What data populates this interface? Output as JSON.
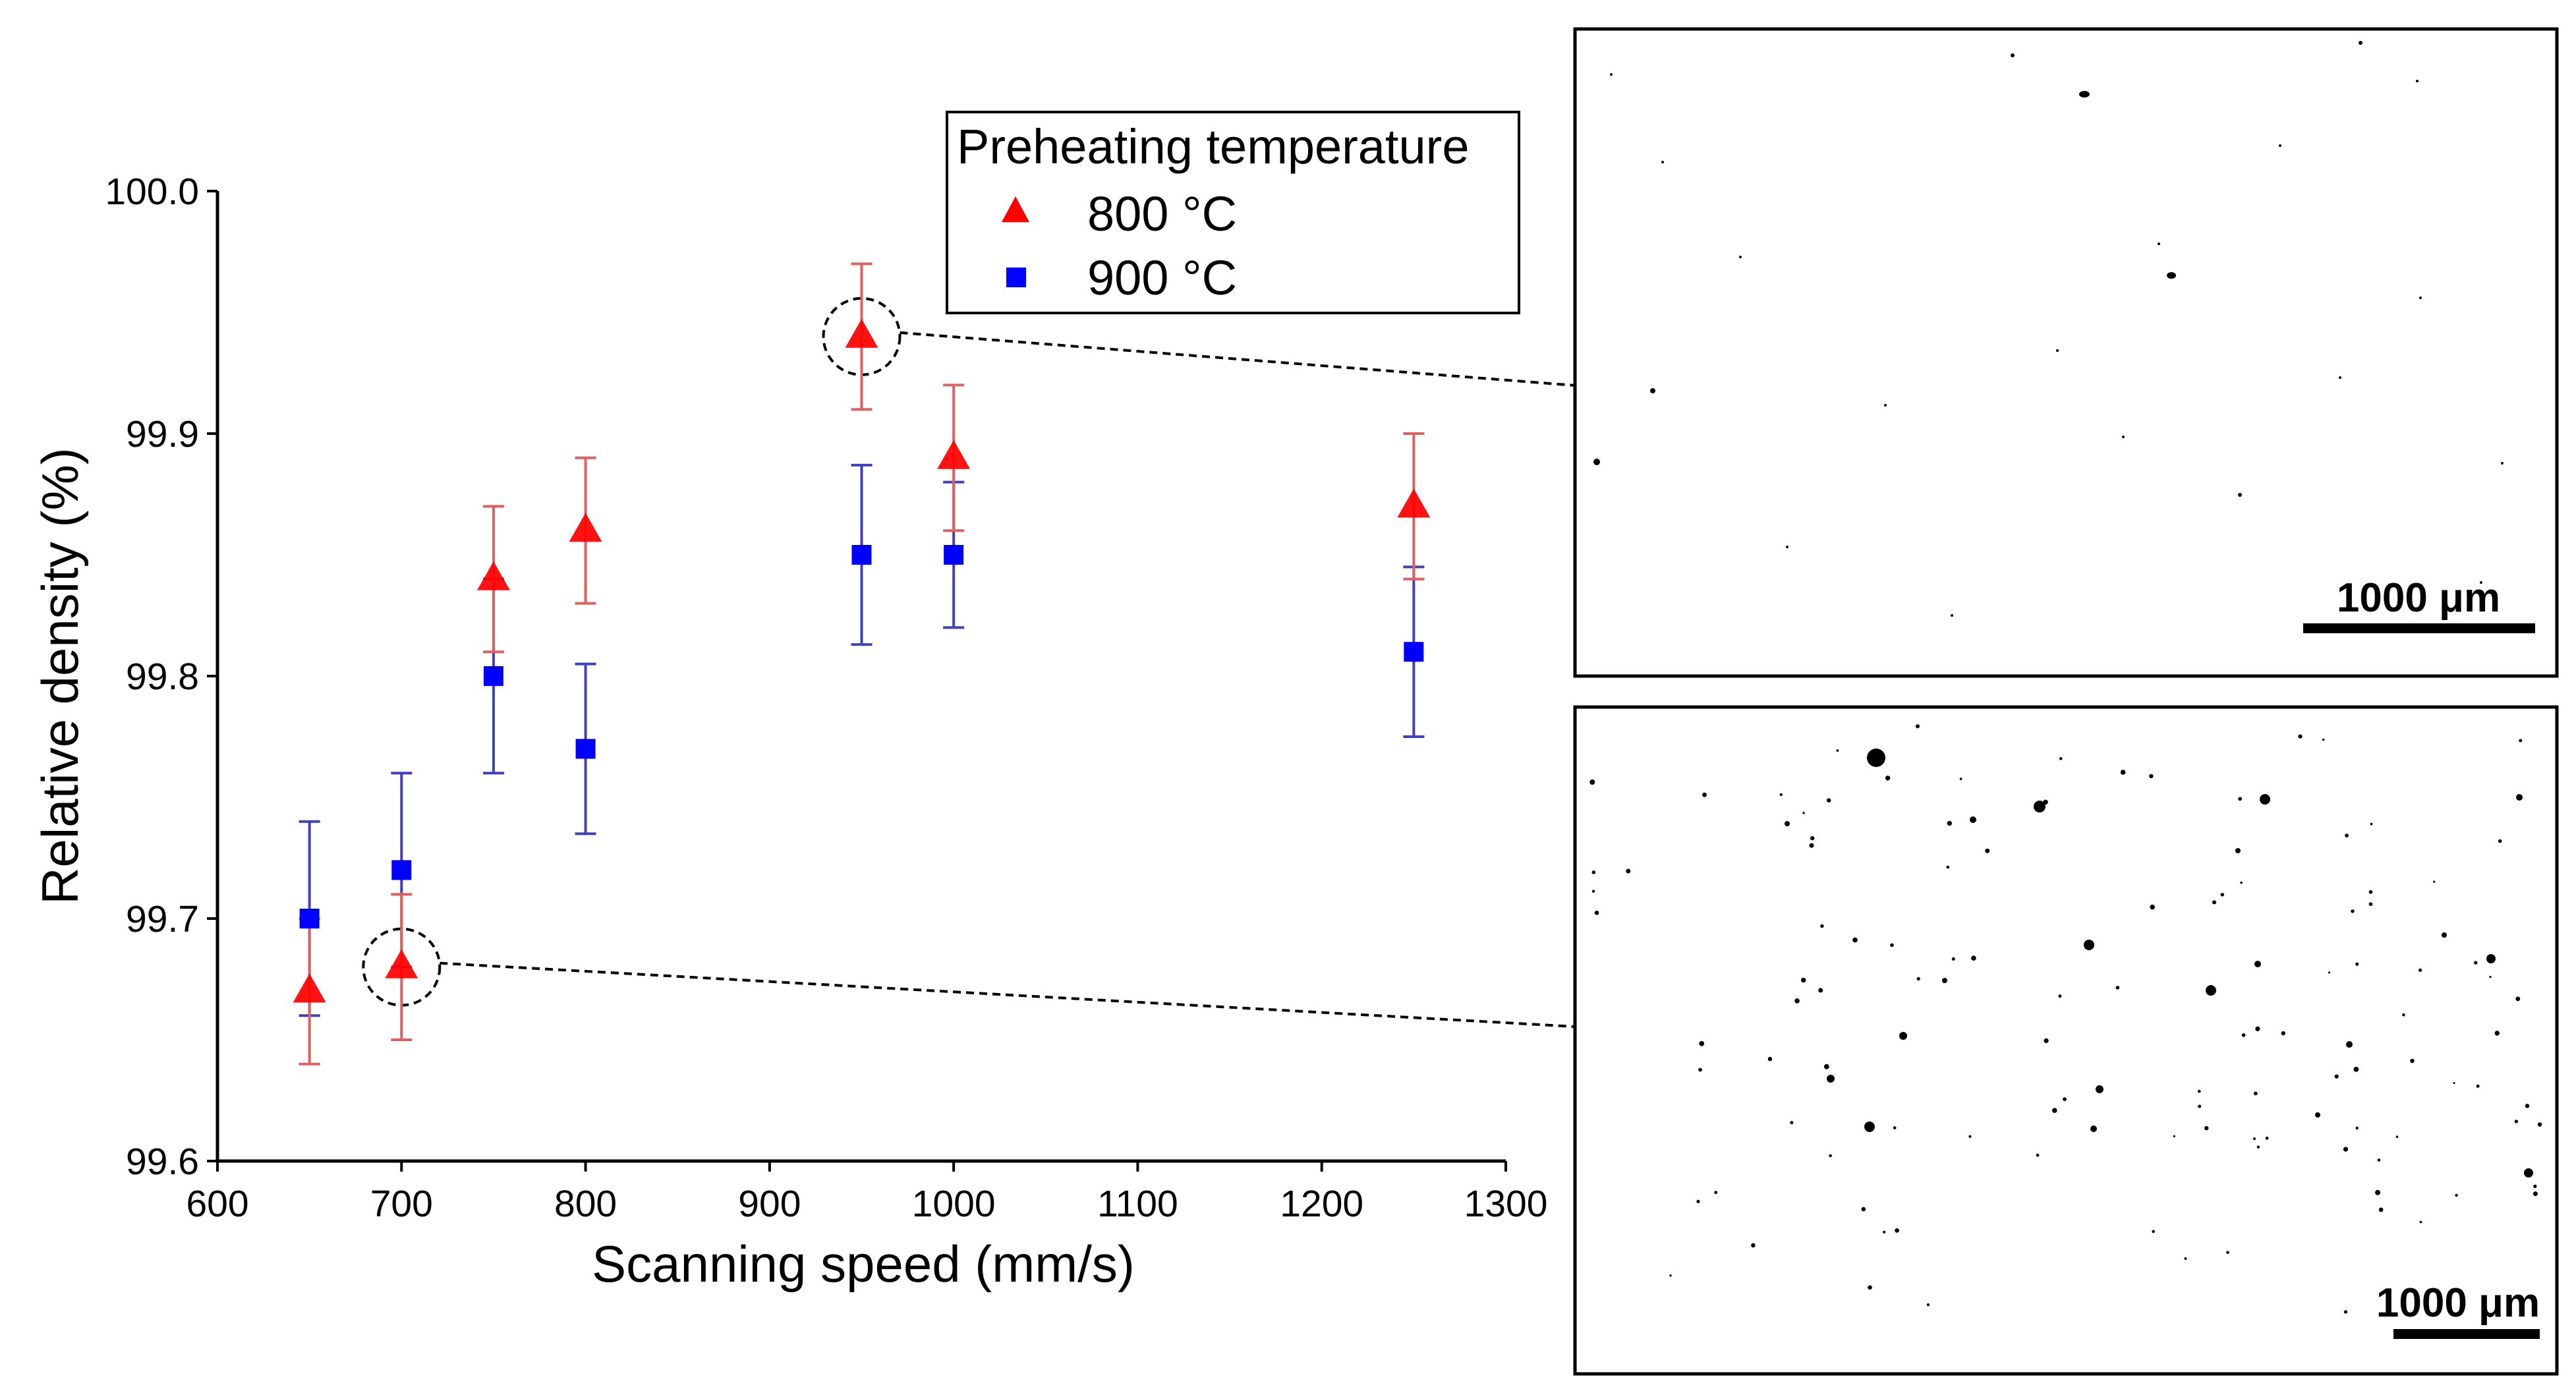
{
  "chart_data": {
    "type": "scatter",
    "title": "",
    "xlabel": "Scanning speed (mm/s)",
    "ylabel": "Relative density (%)",
    "xlim": [
      600,
      1300
    ],
    "ylim": [
      99.6,
      100.0
    ],
    "x_ticks": [
      600,
      700,
      800,
      900,
      1000,
      1100,
      1200,
      1300
    ],
    "y_ticks": [
      99.6,
      99.7,
      99.8,
      99.9,
      100.0
    ],
    "x_tick_labels": [
      "600",
      "700",
      "800",
      "900",
      "1000",
      "1100",
      "1200",
      "1300"
    ],
    "y_tick_labels": [
      "99.6",
      "99.7",
      "99.8",
      "99.9",
      "100.0"
    ],
    "grid": false,
    "legend": {
      "title": "Preheating temperature",
      "position": "top-right"
    },
    "series": [
      {
        "name": "800 °C",
        "marker": "triangle",
        "color": "#ff0000",
        "error_color": "#e06060",
        "x": [
          650,
          700,
          750,
          800,
          950,
          1000,
          1250
        ],
        "y": [
          99.67,
          99.68,
          99.84,
          99.86,
          99.94,
          99.89,
          99.87
        ],
        "err": [
          0.03,
          0.03,
          0.03,
          0.03,
          0.03,
          0.03,
          0.03
        ]
      },
      {
        "name": "900 °C",
        "marker": "square",
        "color": "#0000ff",
        "error_color": "#4040c0",
        "x": [
          650,
          700,
          750,
          800,
          950,
          1000,
          1250
        ],
        "y": [
          99.7,
          99.72,
          99.8,
          99.77,
          99.85,
          99.85,
          99.81
        ],
        "err": [
          0.04,
          0.04,
          0.04,
          0.035,
          0.037,
          0.03,
          0.035
        ]
      }
    ],
    "annotations": [
      {
        "type": "highlight-circle",
        "x": 950,
        "y": 99.94,
        "target": "micrograph-top"
      },
      {
        "type": "highlight-circle",
        "x": 700,
        "y": 99.68,
        "target": "micrograph-bottom"
      }
    ]
  },
  "micrographs": {
    "top": {
      "scale_bar_label": "1000 μm",
      "porosity": "low"
    },
    "bottom": {
      "scale_bar_label": "1000 μm",
      "porosity": "high"
    }
  }
}
